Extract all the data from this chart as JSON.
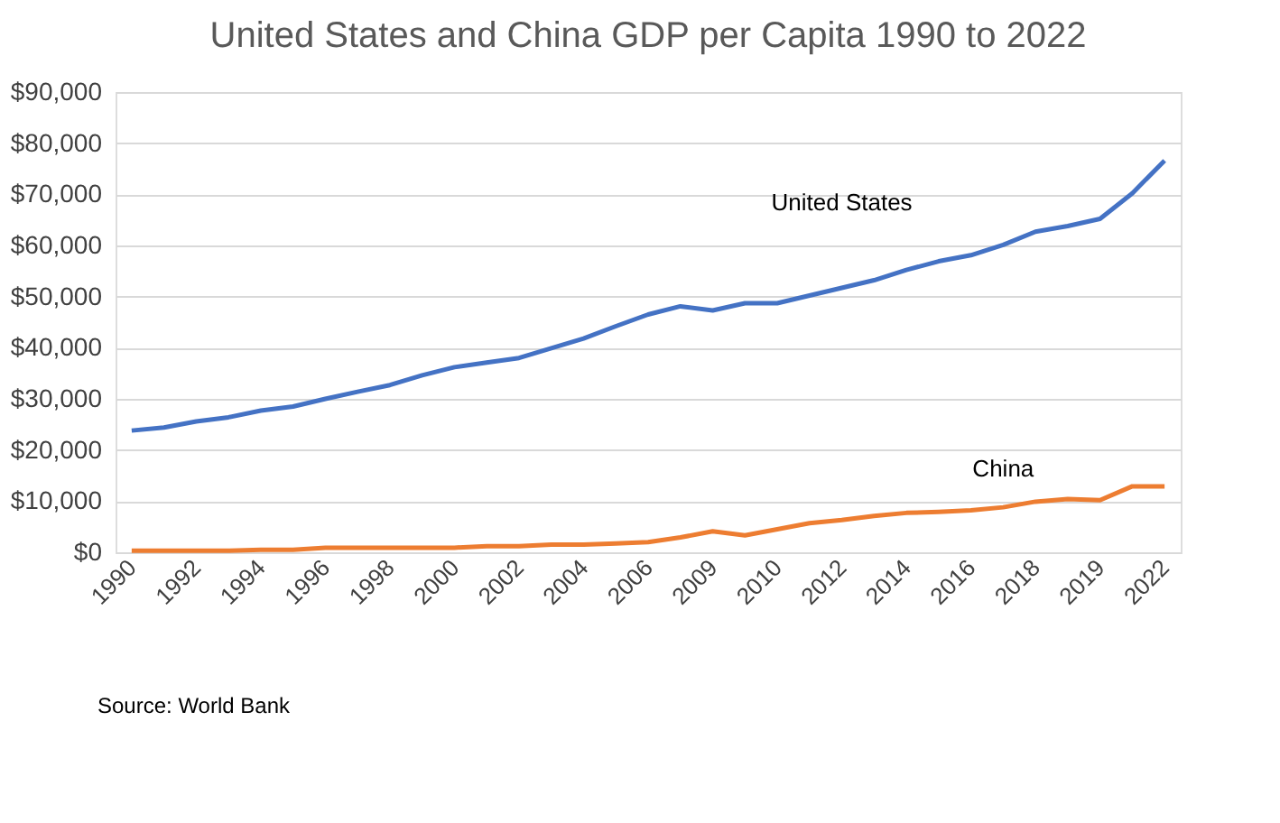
{
  "chart_data": {
    "type": "line",
    "title": "United States and China GDP per Capita 1990 to 2022",
    "categories": [
      "1990",
      null,
      "1992",
      null,
      "1994",
      null,
      "1996",
      null,
      "1998",
      null,
      "2000",
      null,
      "2002",
      null,
      "2004",
      null,
      "2006",
      null,
      "2009",
      null,
      "2010",
      null,
      "2012",
      null,
      "2014",
      null,
      "2016",
      null,
      "2018",
      null,
      "2019",
      null,
      "2022"
    ],
    "series": [
      {
        "name": "United States",
        "color": "#4472c4",
        "values": [
          23800,
          24400,
          25600,
          26400,
          27700,
          28500,
          30000,
          31400,
          32700,
          34600,
          36200,
          37100,
          38000,
          39900,
          41800,
          44200,
          46500,
          48100,
          47300,
          48700,
          48700,
          50200,
          51700,
          53200,
          55200,
          56900,
          58100,
          60100,
          62700,
          63800,
          65200,
          70200,
          76600
        ]
      },
      {
        "name": "China",
        "color": "#ed7d31",
        "values": [
          300,
          300,
          300,
          300,
          500,
          500,
          900,
          900,
          900,
          900,
          900,
          1200,
          1200,
          1500,
          1500,
          1700,
          2000,
          2900,
          4100,
          3300,
          4500,
          5700,
          6300,
          7100,
          7700,
          7900,
          8200,
          8800,
          9900,
          10400,
          10200,
          12900,
          12900
        ]
      }
    ],
    "ylim": [
      0,
      90000
    ],
    "yticks": [
      {
        "value": 0,
        "label": "$0"
      },
      {
        "value": 10000,
        "label": "$10,000"
      },
      {
        "value": 20000,
        "label": "$20,000"
      },
      {
        "value": 30000,
        "label": "$30,000"
      },
      {
        "value": 40000,
        "label": "$40,000"
      },
      {
        "value": 50000,
        "label": "$50,000"
      },
      {
        "value": 60000,
        "label": "$60,000"
      },
      {
        "value": 70000,
        "label": "$70,000"
      },
      {
        "value": 80000,
        "label": "$80,000"
      },
      {
        "value": 90000,
        "label": "$90,000"
      }
    ],
    "grid": "y",
    "legend": false,
    "marker": "none",
    "line_style": "solid",
    "annotations": [
      "Source: World Bank"
    ]
  }
}
